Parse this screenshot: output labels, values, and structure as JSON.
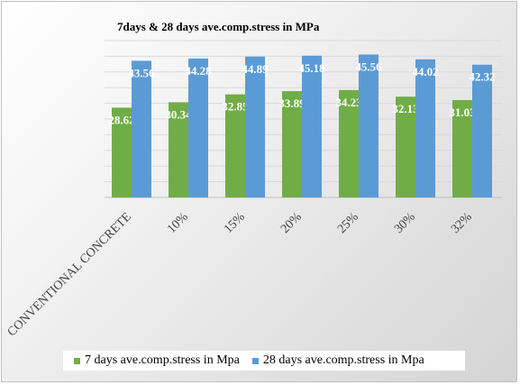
{
  "chart_data": {
    "type": "bar",
    "title": "7days  & 28 days ave.comp.stress  in MPa",
    "categories": [
      "CONVENTIONAL CONCRETE",
      "10%",
      "15%",
      "20%",
      "25%",
      "30%",
      "32%"
    ],
    "series": [
      {
        "name": "7 days ave.comp.stress in Mpa",
        "color": "#70ad47",
        "values": [
          28.62,
          30.34,
          32.85,
          33.89,
          34.23,
          32.13,
          31.03
        ],
        "labels": [
          "28.62",
          "30.34",
          "32.85",
          "33.89",
          "34.23",
          "32.13",
          "31.03"
        ]
      },
      {
        "name": "28 days ave.comp.stress in Mpa",
        "color": "#5b9bd5",
        "values": [
          43.56,
          44.28,
          44.89,
          45.18,
          45.56,
          44.02,
          42.32
        ],
        "labels": [
          "43.56",
          "44.28",
          "44.89",
          "45.18",
          "45.56",
          "44.02",
          "42.32"
        ]
      }
    ],
    "ylim": [
      0,
      50
    ],
    "yticks": [
      0,
      5,
      10,
      15,
      20,
      25,
      30,
      35,
      40,
      45,
      50
    ],
    "grid": true,
    "legend": "bottom",
    "xlabel": "",
    "ylabel": ""
  }
}
